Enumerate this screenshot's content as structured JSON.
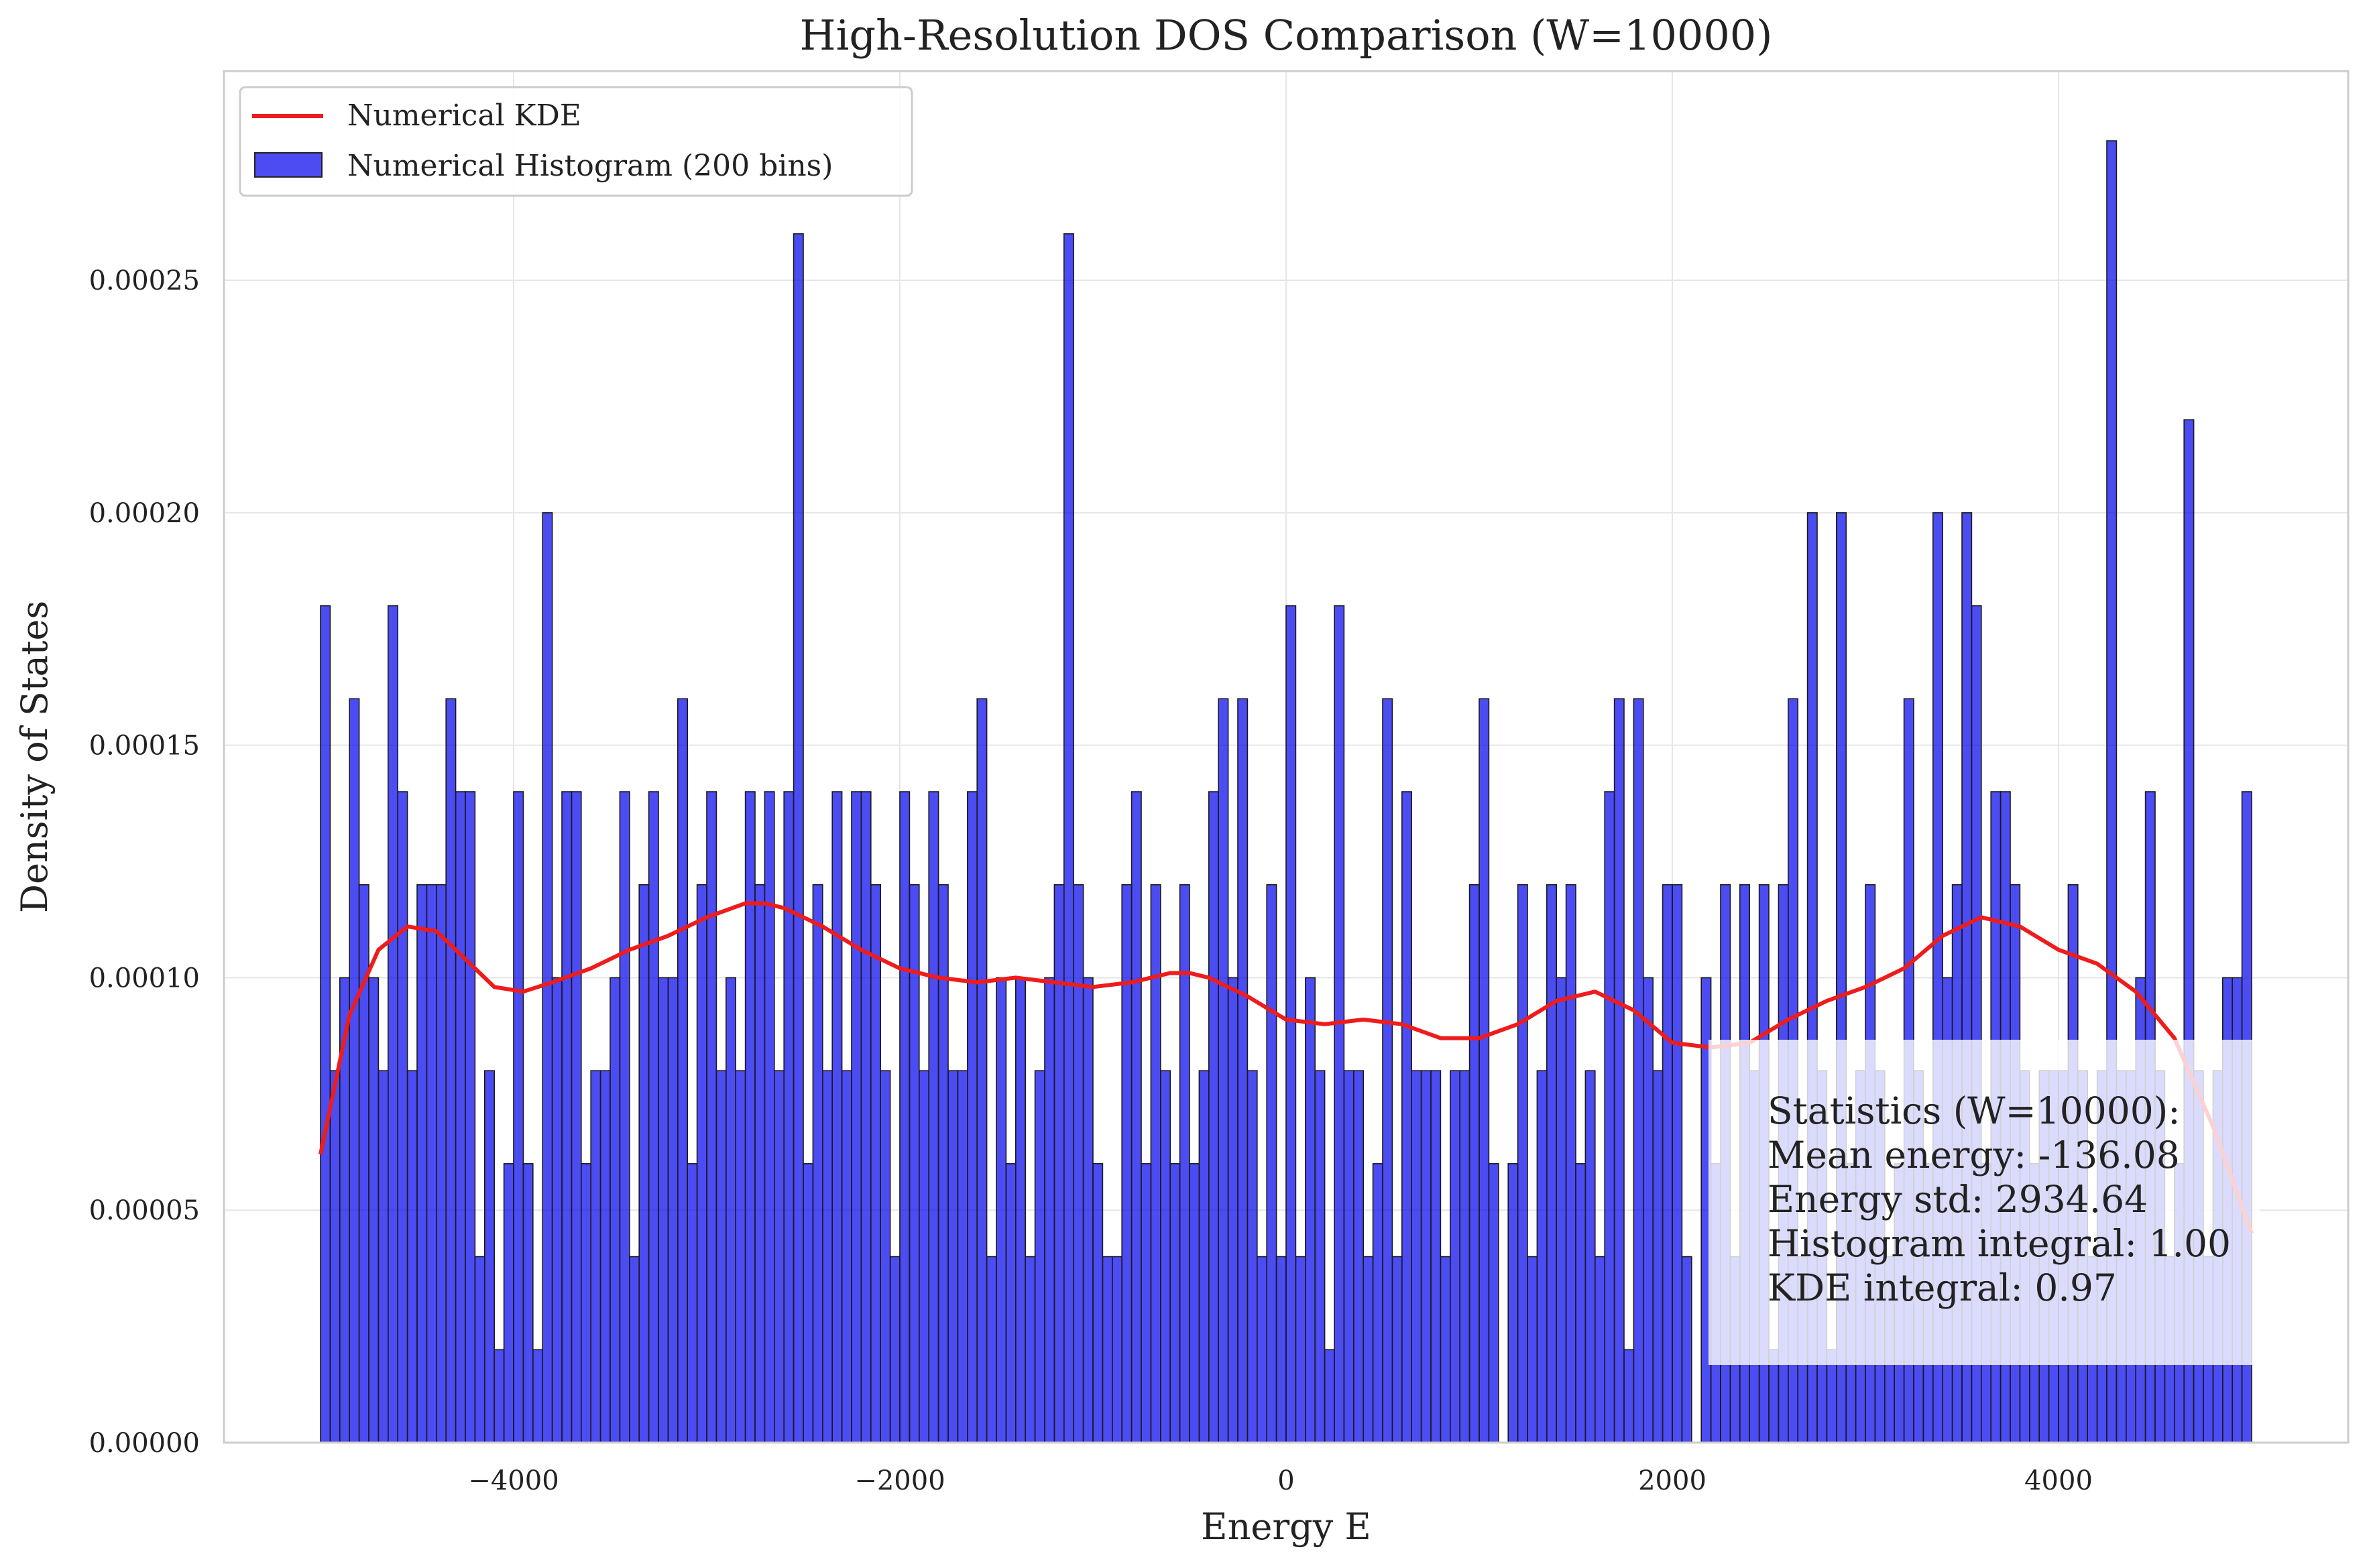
{
  "chart_data": {
    "type": "bar",
    "title": "High-Resolution DOS Comparison (W=10000)",
    "xlabel": "Energy E",
    "ylabel": "Density of States",
    "xlim": [
      -5500,
      5500
    ],
    "ylim": [
      0,
      0.000295
    ],
    "xticks": [
      -4000,
      -2000,
      0,
      2000,
      4000
    ],
    "xtick_labels": [
      "−4000",
      "−2000",
      "0",
      "2000",
      "4000"
    ],
    "yticks": [
      0,
      5e-05,
      0.0001,
      0.00015,
      0.0002,
      0.00025
    ],
    "ytick_labels": [
      "0.00000",
      "0.00005",
      "0.00010",
      "0.00015",
      "0.00020",
      "0.00025"
    ],
    "grid": true,
    "legend_position": "top-left",
    "histogram": {
      "name": "Numerical Histogram (200 bins)",
      "color": "#0000ee",
      "bin_range": [
        -5000,
        5000
      ],
      "bin_count": 200,
      "values": [
        0.00018,
        8e-05,
        0.0001,
        0.00016,
        0.00012,
        0.0001,
        8e-05,
        0.00018,
        0.00014,
        8e-05,
        0.00012,
        0.00012,
        0.00012,
        0.00016,
        0.00014,
        0.00014,
        4e-05,
        8e-05,
        2e-05,
        6e-05,
        0.00014,
        6e-05,
        2e-05,
        0.0002,
        0.0001,
        0.00014,
        0.00014,
        6e-05,
        8e-05,
        8e-05,
        0.0001,
        0.00014,
        4e-05,
        0.00012,
        0.00014,
        0.0001,
        0.0001,
        0.00016,
        6e-05,
        0.00012,
        0.00014,
        8e-05,
        0.0001,
        8e-05,
        0.00014,
        0.00012,
        0.00014,
        8e-05,
        0.00014,
        0.00026,
        6e-05,
        0.00012,
        8e-05,
        0.00014,
        8e-05,
        0.00014,
        0.00014,
        0.00012,
        8e-05,
        4e-05,
        0.00014,
        0.00012,
        8e-05,
        0.00014,
        0.00012,
        8e-05,
        8e-05,
        0.00014,
        0.00016,
        4e-05,
        0.0001,
        6e-05,
        0.0001,
        4e-05,
        8e-05,
        0.0001,
        0.00012,
        0.00026,
        0.00012,
        0.0001,
        6e-05,
        4e-05,
        4e-05,
        0.00012,
        0.00014,
        6e-05,
        0.00012,
        8e-05,
        6e-05,
        0.00012,
        6e-05,
        8e-05,
        0.00014,
        0.00016,
        0.0001,
        0.00016,
        8e-05,
        4e-05,
        0.00012,
        4e-05,
        0.00018,
        4e-05,
        0.0001,
        8e-05,
        2e-05,
        0.00018,
        8e-05,
        8e-05,
        4e-05,
        6e-05,
        0.00016,
        4e-05,
        0.00014,
        8e-05,
        8e-05,
        8e-05,
        4e-05,
        8e-05,
        8e-05,
        0.00012,
        0.00016,
        6e-05,
        0.0,
        6e-05,
        0.00012,
        4e-05,
        8e-05,
        0.00012,
        0.0001,
        0.00012,
        6e-05,
        8e-05,
        4e-05,
        0.00014,
        0.00016,
        2e-05,
        0.00016,
        0.0001,
        8e-05,
        0.00012,
        0.00012,
        4e-05,
        0.0,
        0.0001,
        6e-05,
        0.00012,
        4e-05,
        0.00012,
        8e-05,
        0.00012,
        2e-05,
        0.00012,
        0.00016,
        4e-05,
        0.0002,
        8e-05,
        2e-05,
        0.0002,
        6e-05,
        8e-05,
        0.00012,
        8e-05,
        4e-05,
        6e-05,
        0.00016,
        8e-05,
        6e-05,
        0.0002,
        0.0001,
        0.00012,
        0.0002,
        0.00018,
        6e-05,
        0.00014,
        0.00014,
        0.00012,
        8e-05,
        6e-05,
        8e-05,
        8e-05,
        8e-05,
        0.00012,
        8e-05,
        4e-05,
        8e-05,
        0.00028,
        8e-05,
        8e-05,
        0.0001,
        0.00014,
        8e-05,
        4e-05,
        6e-05,
        0.00022,
        8e-05,
        4e-05,
        8e-05,
        0.0001,
        0.0001,
        0.00014
      ]
    },
    "kde": {
      "name": "Numerical KDE",
      "color": "#ee1c1c",
      "x": [
        -5000,
        -4850,
        -4700,
        -4550,
        -4400,
        -4250,
        -4100,
        -3950,
        -3800,
        -3600,
        -3400,
        -3200,
        -3000,
        -2800,
        -2700,
        -2600,
        -2400,
        -2200,
        -2000,
        -1800,
        -1600,
        -1400,
        -1200,
        -1000,
        -800,
        -600,
        -500,
        -400,
        -200,
        0,
        200,
        400,
        600,
        800,
        1000,
        1200,
        1400,
        1600,
        1800,
        2000,
        2200,
        2400,
        2600,
        2800,
        3000,
        3200,
        3400,
        3600,
        3800,
        4000,
        4200,
        4400,
        4600,
        4800,
        5000
      ],
      "y": [
        6.2e-05,
        9.2e-05,
        0.000106,
        0.000111,
        0.00011,
        0.000104,
        9.8e-05,
        9.7e-05,
        9.9e-05,
        0.000102,
        0.000106,
        0.000109,
        0.000113,
        0.000116,
        0.000116,
        0.000115,
        0.000111,
        0.000106,
        0.000102,
        0.0001,
        9.9e-05,
        0.0001,
        9.9e-05,
        9.8e-05,
        9.9e-05,
        0.000101,
        0.000101,
        0.0001,
        9.6e-05,
        9.1e-05,
        9e-05,
        9.1e-05,
        9e-05,
        8.7e-05,
        8.7e-05,
        9e-05,
        9.5e-05,
        9.7e-05,
        9.3e-05,
        8.6e-05,
        8.5e-05,
        8.6e-05,
        9.1e-05,
        9.5e-05,
        9.8e-05,
        0.000102,
        0.000109,
        0.000113,
        0.000111,
        0.000106,
        0.000103,
        9.7e-05,
        8.7e-05,
        6.8e-05,
        4.5e-05
      ]
    },
    "stats_box": {
      "lines": [
        "Statistics (W=10000):",
        "Mean energy: -136.08",
        "Energy std: 2934.64",
        "Histogram integral: 1.00",
        "KDE integral: 0.97"
      ]
    }
  }
}
